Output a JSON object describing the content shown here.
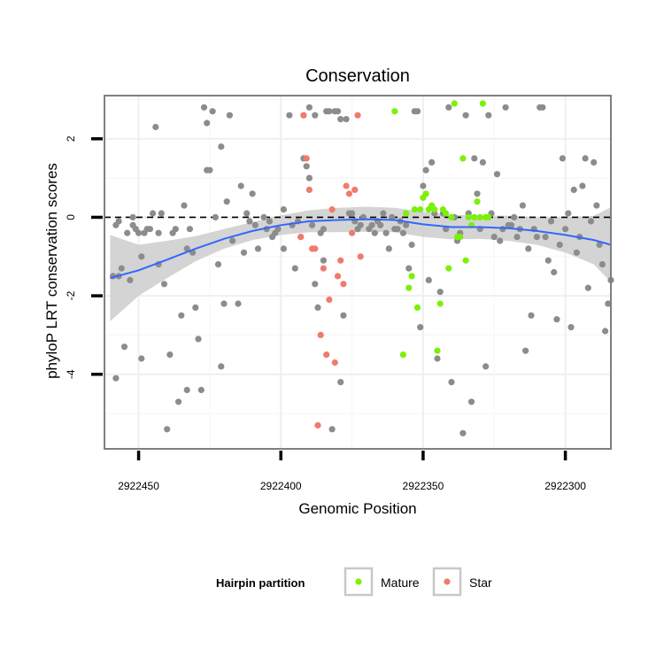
{
  "chart_data": {
    "type": "scatter",
    "title": "Conservation",
    "xlabel": "Genomic Position",
    "ylabel": "phyloP LRT conservation scores",
    "x_reversed": true,
    "xlim": [
      2922462,
      2922284
    ],
    "ylim": [
      -5.9,
      3.1
    ],
    "x_ticks": [
      2922450,
      2922400,
      2922350,
      2922300
    ],
    "x_tick_labels": [
      "2922450",
      "2922400",
      "2922350",
      "2922300"
    ],
    "y_ticks": [
      2,
      0,
      -2,
      -4
    ],
    "y_tick_labels": [
      "2",
      "0",
      "-2",
      "-4"
    ],
    "reference_line": {
      "y": 0,
      "style": "dashed"
    },
    "grid": true,
    "legend": {
      "title": "Hairpin partition",
      "position": "bottom",
      "entries": [
        {
          "label": "Mature",
          "color": "#7cf00a"
        },
        {
          "label": "Star",
          "color": "#f07b6c"
        }
      ]
    },
    "colors": {
      "other": "#8c8c8c",
      "Mature": "#7cf00a",
      "Star": "#f07b6c",
      "smooth": "#3366ff",
      "band": "#cccccc"
    },
    "series": [
      {
        "name": "",
        "color": "#8c8c8c",
        "points": [
          [
            2922459,
            -1.5
          ],
          [
            2922458,
            -0.2
          ],
          [
            2922458,
            -4.1
          ],
          [
            2922457,
            -1.5
          ],
          [
            2922457,
            -0.1
          ],
          [
            2922456,
            -1.3
          ],
          [
            2922455,
            -3.3
          ],
          [
            2922454,
            -0.4
          ],
          [
            2922453,
            -1.6
          ],
          [
            2922452,
            -0.2
          ],
          [
            2922452,
            0.0
          ],
          [
            2922451,
            -0.3
          ],
          [
            2922450,
            -0.4
          ],
          [
            2922449,
            -1.0
          ],
          [
            2922449,
            -3.6
          ],
          [
            2922448,
            -0.4
          ],
          [
            2922447,
            -0.3
          ],
          [
            2922446,
            -0.3
          ],
          [
            2922445,
            0.1
          ],
          [
            2922444,
            2.3
          ],
          [
            2922443,
            -1.2
          ],
          [
            2922443,
            -0.4
          ],
          [
            2922442,
            0.1
          ],
          [
            2922441,
            -1.7
          ],
          [
            2922440,
            -5.4
          ],
          [
            2922439,
            -3.5
          ],
          [
            2922438,
            -0.4
          ],
          [
            2922437,
            -0.3
          ],
          [
            2922436,
            -4.7
          ],
          [
            2922435,
            -2.5
          ],
          [
            2922434,
            0.3
          ],
          [
            2922433,
            -4.4
          ],
          [
            2922433,
            -0.8
          ],
          [
            2922432,
            -0.3
          ],
          [
            2922431,
            -0.9
          ],
          [
            2922430,
            -2.3
          ],
          [
            2922429,
            -3.1
          ],
          [
            2922428,
            -4.4
          ],
          [
            2922427,
            2.8
          ],
          [
            2922426,
            2.4
          ],
          [
            2922426,
            1.2
          ],
          [
            2922425,
            1.2
          ],
          [
            2922424,
            2.7
          ],
          [
            2922423,
            0.0
          ],
          [
            2922422,
            -1.2
          ],
          [
            2922421,
            -3.8
          ],
          [
            2922421,
            1.8
          ],
          [
            2922420,
            -2.2
          ],
          [
            2922419,
            0.4
          ],
          [
            2922418,
            2.6
          ],
          [
            2922417,
            -0.6
          ],
          [
            2922415,
            -2.2
          ],
          [
            2922414,
            0.8
          ],
          [
            2922413,
            -0.9
          ],
          [
            2922412,
            0.1
          ],
          [
            2922411,
            -0.1
          ],
          [
            2922410,
            0.6
          ],
          [
            2922409,
            -0.2
          ],
          [
            2922408,
            -0.8
          ],
          [
            2922406,
            0.0
          ],
          [
            2922405,
            -0.3
          ],
          [
            2922404,
            -0.1
          ],
          [
            2922403,
            -0.5
          ],
          [
            2922402,
            -0.4
          ],
          [
            2922401,
            -0.3
          ],
          [
            2922399,
            0.2
          ],
          [
            2922399,
            -0.8
          ],
          [
            2922397,
            2.6
          ],
          [
            2922396,
            -0.2
          ],
          [
            2922395,
            -1.3
          ],
          [
            2922394,
            -0.1
          ],
          [
            2922393,
            -0.5
          ],
          [
            2922392,
            2.6
          ],
          [
            2922392,
            1.5
          ],
          [
            2922391,
            1.3
          ],
          [
            2922390,
            1.0
          ],
          [
            2922390,
            2.8
          ],
          [
            2922389,
            -0.2
          ],
          [
            2922388,
            -1.7
          ],
          [
            2922388,
            2.6
          ],
          [
            2922387,
            -2.3
          ],
          [
            2922386,
            -0.4
          ],
          [
            2922385,
            -0.3
          ],
          [
            2922385,
            -1.1
          ],
          [
            2922384,
            2.7
          ],
          [
            2922383,
            2.7
          ],
          [
            2922382,
            -5.4
          ],
          [
            2922381,
            2.7
          ],
          [
            2922380,
            2.7
          ],
          [
            2922379,
            2.5
          ],
          [
            2922379,
            -4.2
          ],
          [
            2922378,
            -2.5
          ],
          [
            2922377,
            2.5
          ],
          [
            2922376,
            0.1
          ],
          [
            2922375,
            0.1
          ],
          [
            2922374,
            -0.1
          ],
          [
            2922373,
            -0.3
          ],
          [
            2922372,
            -0.2
          ],
          [
            2922371,
            0.0
          ],
          [
            2922369,
            -0.3
          ],
          [
            2922368,
            -0.2
          ],
          [
            2922367,
            -0.4
          ],
          [
            2922366,
            -0.1
          ],
          [
            2922365,
            -0.2
          ],
          [
            2922364,
            0.1
          ],
          [
            2922363,
            -0.4
          ],
          [
            2922362,
            -0.8
          ],
          [
            2922361,
            0.0
          ],
          [
            2922360,
            -0.3
          ],
          [
            2922359,
            -0.3
          ],
          [
            2922358,
            -0.1
          ],
          [
            2922357,
            -0.4
          ],
          [
            2922356,
            -0.2
          ],
          [
            2922355,
            -1.3
          ],
          [
            2922354,
            -0.7
          ],
          [
            2922353,
            2.7
          ],
          [
            2922352,
            2.7
          ],
          [
            2922351,
            -2.8
          ],
          [
            2922350,
            0.8
          ],
          [
            2922349,
            1.2
          ],
          [
            2922348,
            -1.6
          ],
          [
            2922347,
            1.4
          ],
          [
            2922346,
            0.1
          ],
          [
            2922345,
            -3.6
          ],
          [
            2922344,
            -1.9
          ],
          [
            2922343,
            0.1
          ],
          [
            2922342,
            -0.3
          ],
          [
            2922341,
            2.8
          ],
          [
            2922340,
            -4.2
          ],
          [
            2922339,
            0.0
          ],
          [
            2922338,
            -0.6
          ],
          [
            2922337,
            -0.4
          ],
          [
            2922336,
            -5.5
          ],
          [
            2922335,
            2.6
          ],
          [
            2922334,
            0.1
          ],
          [
            2922333,
            -4.7
          ],
          [
            2922332,
            1.5
          ],
          [
            2922331,
            0.6
          ],
          [
            2922330,
            -0.3
          ],
          [
            2922329,
            1.4
          ],
          [
            2922328,
            -3.8
          ],
          [
            2922327,
            2.6
          ],
          [
            2922326,
            0.1
          ],
          [
            2922325,
            -0.5
          ],
          [
            2922324,
            1.1
          ],
          [
            2922323,
            -0.6
          ],
          [
            2922322,
            -0.3
          ],
          [
            2922321,
            2.8
          ],
          [
            2922320,
            -0.2
          ],
          [
            2922319,
            -0.2
          ],
          [
            2922318,
            0.0
          ],
          [
            2922317,
            -0.5
          ],
          [
            2922316,
            -0.3
          ],
          [
            2922315,
            0.3
          ],
          [
            2922314,
            -3.4
          ],
          [
            2922313,
            -0.8
          ],
          [
            2922312,
            -2.5
          ],
          [
            2922311,
            -0.3
          ],
          [
            2922310,
            -0.5
          ],
          [
            2922309,
            2.8
          ],
          [
            2922308,
            2.8
          ],
          [
            2922307,
            -0.5
          ],
          [
            2922306,
            -1.1
          ],
          [
            2922305,
            -0.1
          ],
          [
            2922304,
            -1.4
          ],
          [
            2922303,
            -2.6
          ],
          [
            2922302,
            -0.7
          ],
          [
            2922301,
            1.5
          ],
          [
            2922300,
            -0.3
          ],
          [
            2922299,
            0.1
          ],
          [
            2922298,
            -2.8
          ],
          [
            2922297,
            0.7
          ],
          [
            2922296,
            -0.9
          ],
          [
            2922295,
            -0.5
          ],
          [
            2922294,
            0.8
          ],
          [
            2922293,
            1.5
          ],
          [
            2922292,
            -1.8
          ],
          [
            2922291,
            -0.1
          ],
          [
            2922290,
            1.4
          ],
          [
            2922289,
            0.3
          ],
          [
            2922288,
            -0.7
          ],
          [
            2922287,
            -1.2
          ],
          [
            2922286,
            -2.9
          ],
          [
            2922285,
            -2.2
          ],
          [
            2922284,
            -1.6
          ]
        ]
      },
      {
        "name": "Mature",
        "color": "#7cf00a",
        "points": [
          [
            2922360,
            2.7
          ],
          [
            2922357,
            -3.5
          ],
          [
            2922356,
            0.1
          ],
          [
            2922355,
            -1.8
          ],
          [
            2922354,
            -1.5
          ],
          [
            2922353,
            0.2
          ],
          [
            2922352,
            -2.3
          ],
          [
            2922351,
            0.2
          ],
          [
            2922350,
            0.5
          ],
          [
            2922349,
            0.6
          ],
          [
            2922348,
            0.2
          ],
          [
            2922347,
            0.3
          ],
          [
            2922346,
            0.2
          ],
          [
            2922345,
            -3.4
          ],
          [
            2922344,
            -2.2
          ],
          [
            2922343,
            0.2
          ],
          [
            2922342,
            0.1
          ],
          [
            2922341,
            -1.3
          ],
          [
            2922340,
            0.0
          ],
          [
            2922339,
            2.9
          ],
          [
            2922338,
            -0.5
          ],
          [
            2922337,
            -0.5
          ],
          [
            2922336,
            1.5
          ],
          [
            2922335,
            -1.1
          ],
          [
            2922334,
            0.0
          ],
          [
            2922333,
            -0.2
          ],
          [
            2922332,
            0.0
          ],
          [
            2922331,
            0.4
          ],
          [
            2922330,
            0.0
          ],
          [
            2922329,
            2.9
          ],
          [
            2922328,
            0.0
          ],
          [
            2922327,
            0.0
          ]
        ]
      },
      {
        "name": "Star",
        "color": "#f07b6c",
        "points": [
          [
            2922393,
            -0.5
          ],
          [
            2922392,
            2.6
          ],
          [
            2922391,
            1.5
          ],
          [
            2922390,
            0.7
          ],
          [
            2922389,
            -0.8
          ],
          [
            2922388,
            -0.8
          ],
          [
            2922387,
            -5.3
          ],
          [
            2922386,
            -3.0
          ],
          [
            2922385,
            -1.3
          ],
          [
            2922384,
            -3.5
          ],
          [
            2922383,
            -2.1
          ],
          [
            2922382,
            0.2
          ],
          [
            2922381,
            -3.7
          ],
          [
            2922380,
            -1.5
          ],
          [
            2922379,
            -1.1
          ],
          [
            2922378,
            -1.7
          ],
          [
            2922377,
            0.8
          ],
          [
            2922376,
            0.6
          ],
          [
            2922375,
            -0.4
          ],
          [
            2922374,
            0.7
          ],
          [
            2922373,
            2.6
          ],
          [
            2922372,
            -1.0
          ]
        ]
      }
    ],
    "smooth": {
      "x": [
        2922460,
        2922450,
        2922440,
        2922430,
        2922420,
        2922410,
        2922400,
        2922390,
        2922380,
        2922370,
        2922360,
        2922350,
        2922340,
        2922330,
        2922320,
        2922310,
        2922300,
        2922290,
        2922284
      ],
      "y": [
        -1.55,
        -1.35,
        -1.08,
        -0.8,
        -0.55,
        -0.35,
        -0.2,
        -0.1,
        -0.07,
        -0.05,
        -0.07,
        -0.18,
        -0.25,
        -0.25,
        -0.28,
        -0.35,
        -0.45,
        -0.58,
        -0.7
      ],
      "lower": [
        -2.65,
        -2.0,
        -1.55,
        -1.12,
        -0.8,
        -0.58,
        -0.45,
        -0.38,
        -0.38,
        -0.37,
        -0.38,
        -0.5,
        -0.56,
        -0.55,
        -0.6,
        -0.7,
        -0.9,
        -1.2,
        -1.65
      ],
      "upper": [
        -0.45,
        -0.7,
        -0.6,
        -0.48,
        -0.3,
        -0.12,
        0.05,
        0.18,
        0.24,
        0.27,
        0.24,
        0.14,
        0.06,
        0.05,
        0.04,
        0.0,
        0.0,
        0.04,
        0.25
      ]
    }
  }
}
